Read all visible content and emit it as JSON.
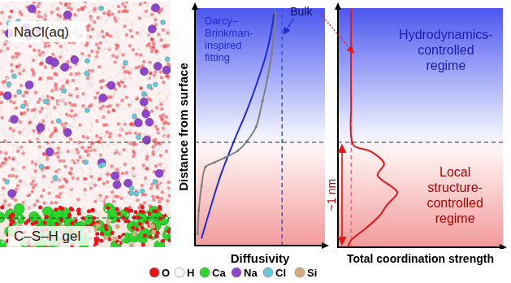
{
  "snapshot": {
    "labels": [
      "NaCl(aq)",
      "C–S–H gel"
    ],
    "atom_legend": [
      {
        "label": "O",
        "color": "#e8141b"
      },
      {
        "label": "H",
        "color": "#ffffff"
      },
      {
        "label": "Ca",
        "color": "#2ed52e"
      },
      {
        "label": "Na",
        "color": "#8d45c9"
      },
      {
        "label": "Cl",
        "color": "#6cc6d6"
      },
      {
        "label": "Si",
        "color": "#d7ab80"
      }
    ]
  },
  "chart_data": [
    {
      "type": "scatter",
      "xlabel": "Diffusivity",
      "ylabel": "Distance from surface",
      "xlim": [
        0,
        1
      ],
      "ylim": [
        0,
        1
      ],
      "tick_labels": false,
      "grid": false,
      "series": [
        {
          "color": "#7f7f7f",
          "type": "line",
          "marker": "square",
          "x": [
            0.02,
            0.03,
            0.05,
            0.08,
            0.15,
            0.23,
            0.33,
            0.4,
            0.47,
            0.52,
            0.56,
            0.59,
            0.61,
            0.62
          ],
          "values": [
            0.05,
            0.15,
            0.25,
            0.33,
            0.35,
            0.37,
            0.4,
            0.44,
            0.5,
            0.61,
            0.71,
            0.81,
            0.91,
            0.98
          ]
        },
        {
          "color": "#1f2bd0",
          "type": "line",
          "marker": "none",
          "x": [
            0.05,
            0.12,
            0.2,
            0.3,
            0.4,
            0.48,
            0.55,
            0.59,
            0.61
          ],
          "values": [
            0.03,
            0.16,
            0.3,
            0.44,
            0.57,
            0.69,
            0.81,
            0.91,
            0.98
          ]
        },
        {
          "color": "#3050e0",
          "type": "line",
          "marker": "none",
          "line_style": "dashed",
          "x": [
            0.67,
            0.67
          ],
          "values": [
            0,
            1
          ]
        }
      ],
      "annotations": [
        {
          "text": "Darcy–Brinkman-inspired fitting"
        },
        {
          "text": "Bulk"
        }
      ]
    },
    {
      "type": "line",
      "xlabel": "Total coordination strength",
      "xlim": [
        0,
        1
      ],
      "ylim": [
        0,
        1
      ],
      "tick_labels": false,
      "grid": false,
      "series": [
        {
          "color": "#e01818",
          "marker": "none",
          "x": [
            0.08,
            0.08,
            0.09,
            0.2,
            0.28,
            0.24,
            0.36,
            0.3,
            0.25,
            0.17,
            0.08,
            0.06
          ],
          "values": [
            1,
            0.6,
            0.43,
            0.4,
            0.35,
            0.3,
            0.23,
            0.18,
            0.13,
            0.08,
            0.03,
            0
          ]
        },
        {
          "color": "#f07070",
          "marker": "none",
          "line_style": "dashed",
          "x": [
            0.08,
            0.08
          ],
          "values": [
            0,
            1
          ]
        }
      ],
      "annotations": [
        {
          "text": "Hydrodynamics-controlled regime"
        },
        {
          "text": "Local structure-controlled regime"
        },
        {
          "text": "~1 nm"
        }
      ]
    }
  ]
}
